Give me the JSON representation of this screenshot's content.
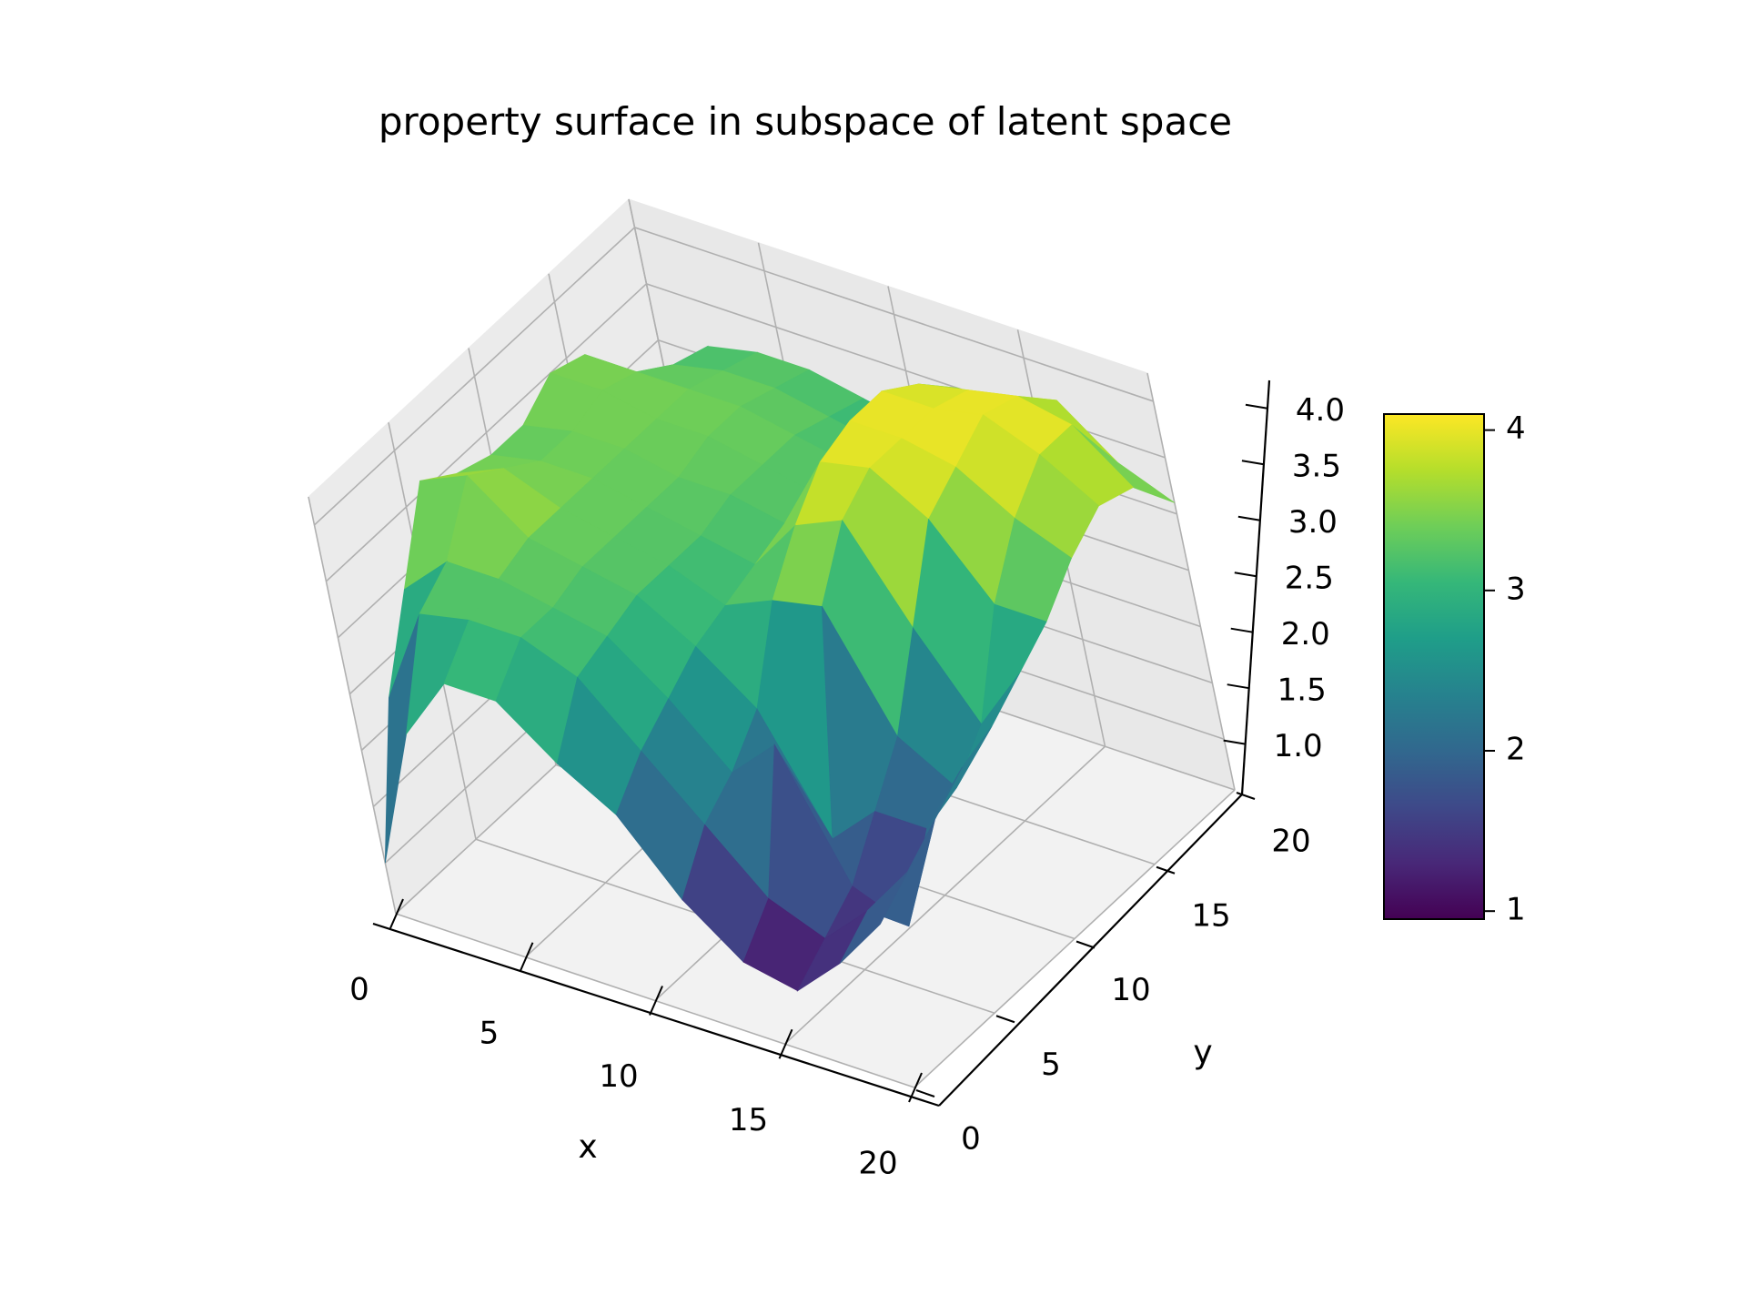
{
  "chart_data": {
    "type": "surface3d",
    "title": "property surface in subspace of latent space",
    "xlabel": "x",
    "ylabel": "y",
    "zlabel": "",
    "colormap": "viridis",
    "xlim": [
      0,
      20
    ],
    "ylim": [
      0,
      20
    ],
    "zlim": [
      0.55,
      4.25
    ],
    "grid": true,
    "x_ticks": [
      0,
      5,
      10,
      15,
      20
    ],
    "y_ticks": [
      0,
      5,
      10,
      15,
      20
    ],
    "z_ticks": [
      "1.0",
      "1.5",
      "2.0",
      "2.5",
      "3.0",
      "3.5",
      "4.0"
    ],
    "colorbar": {
      "placement": "right",
      "range": [
        0.95,
        4.1
      ],
      "ticks": [
        "1",
        "2",
        "3",
        "4"
      ],
      "colors": [
        "#440154",
        "#482878",
        "#3e4989",
        "#31688e",
        "#26828e",
        "#1f9e89",
        "#35b779",
        "#6ece58",
        "#b5de2b",
        "#fde725"
      ]
    },
    "surface_grid": {
      "x": [
        0,
        2,
        4,
        6,
        8,
        10,
        12,
        14,
        16,
        18,
        20
      ],
      "y": [
        0,
        2,
        4,
        6,
        8,
        10,
        12,
        14,
        16,
        18,
        20
      ],
      "z": [
        [
          1.0,
          2.2,
          2.9,
          3.6,
          3.4,
          3.3,
          3.3,
          3.5,
          3.4,
          2.8,
          2.3
        ],
        [
          2.3,
          3.1,
          3.3,
          3.8,
          3.6,
          3.4,
          3.4,
          3.5,
          3.4,
          3.2,
          3.1
        ],
        [
          2.9,
          3.2,
          3.3,
          3.4,
          3.4,
          3.4,
          3.4,
          3.4,
          3.4,
          3.3,
          3.2
        ],
        [
          2.9,
          3.2,
          3.2,
          3.3,
          3.3,
          3.3,
          3.3,
          3.4,
          3.4,
          3.3,
          3.2
        ],
        [
          2.5,
          3.0,
          3.1,
          3.2,
          3.2,
          3.2,
          3.3,
          3.3,
          3.3,
          3.2,
          3.1
        ],
        [
          2.2,
          2.5,
          2.7,
          2.9,
          3.0,
          3.1,
          3.2,
          3.2,
          3.2,
          3.1,
          3.0
        ],
        [
          1.6,
          2.0,
          2.2,
          2.5,
          3.2,
          3.6,
          3.9,
          4.0,
          4.0,
          3.8,
          3.5
        ],
        [
          1.2,
          1.5,
          2.6,
          1.5,
          3.3,
          3.8,
          4.0,
          4.0,
          4.0,
          3.9,
          3.5
        ],
        [
          1.1,
          1.3,
          1.5,
          1.9,
          2.3,
          3.0,
          3.7,
          3.9,
          4.1,
          4.0,
          3.7
        ],
        [
          1.5,
          1.7,
          1.3,
          1.9,
          2.0,
          2.3,
          3.1,
          3.6,
          3.9,
          3.9,
          3.3
        ],
        [
          2.0,
          2.2,
          2.4,
          2.6,
          2.7,
          2.9,
          3.1,
          3.4,
          3.6,
          3.5,
          3.1
        ]
      ]
    }
  }
}
